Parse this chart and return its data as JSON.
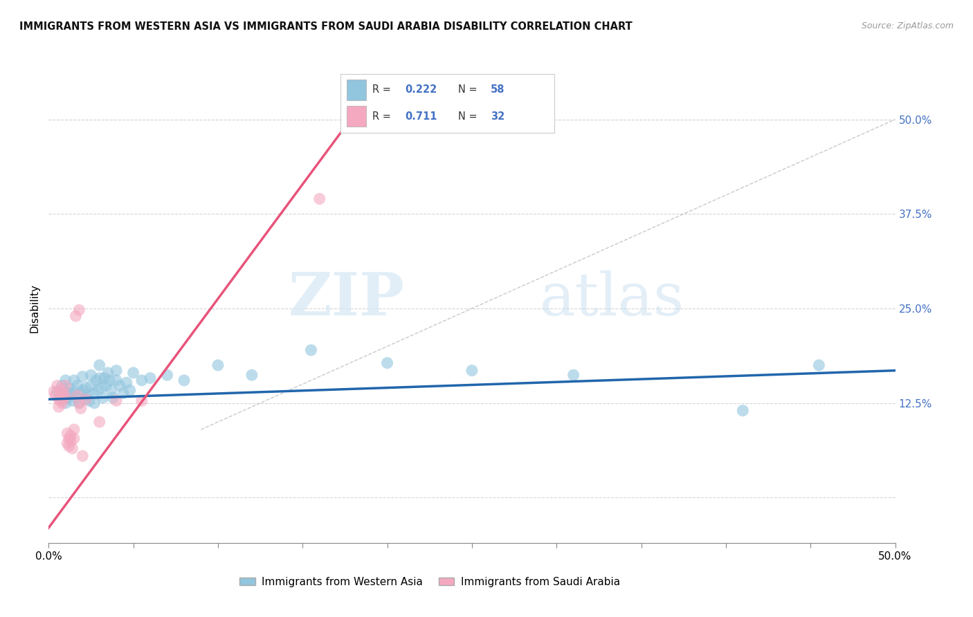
{
  "title": "IMMIGRANTS FROM WESTERN ASIA VS IMMIGRANTS FROM SAUDI ARABIA DISABILITY CORRELATION CHART",
  "source": "Source: ZipAtlas.com",
  "ylabel": "Disability",
  "xlim": [
    0.0,
    0.5
  ],
  "ylim": [
    -0.06,
    0.56
  ],
  "ytick_values": [
    0.0,
    0.125,
    0.25,
    0.375,
    0.5
  ],
  "xtick_values": [
    0.0,
    0.05,
    0.1,
    0.15,
    0.2,
    0.25,
    0.3,
    0.35,
    0.4,
    0.45,
    0.5
  ],
  "legend_blue_label": "Immigrants from Western Asia",
  "legend_pink_label": "Immigrants from Saudi Arabia",
  "R_blue": "0.222",
  "N_blue": "58",
  "R_pink": "0.711",
  "N_pink": "32",
  "blue_color": "#92c5de",
  "pink_color": "#f4a9c0",
  "trend_blue_color": "#2166ac",
  "trend_pink_color": "#e8547a",
  "watermark_zip": "ZIP",
  "watermark_atlas": "atlas",
  "blue_scatter": [
    [
      0.005,
      0.14
    ],
    [
      0.007,
      0.135
    ],
    [
      0.008,
      0.148
    ],
    [
      0.009,
      0.13
    ],
    [
      0.01,
      0.155
    ],
    [
      0.01,
      0.14
    ],
    [
      0.01,
      0.125
    ],
    [
      0.011,
      0.132
    ],
    [
      0.012,
      0.145
    ],
    [
      0.013,
      0.138
    ],
    [
      0.014,
      0.128
    ],
    [
      0.015,
      0.155
    ],
    [
      0.015,
      0.14
    ],
    [
      0.016,
      0.133
    ],
    [
      0.017,
      0.148
    ],
    [
      0.018,
      0.125
    ],
    [
      0.019,
      0.138
    ],
    [
      0.02,
      0.16
    ],
    [
      0.02,
      0.142
    ],
    [
      0.021,
      0.13
    ],
    [
      0.022,
      0.145
    ],
    [
      0.023,
      0.135
    ],
    [
      0.024,
      0.128
    ],
    [
      0.025,
      0.162
    ],
    [
      0.025,
      0.148
    ],
    [
      0.026,
      0.138
    ],
    [
      0.027,
      0.125
    ],
    [
      0.028,
      0.155
    ],
    [
      0.029,
      0.142
    ],
    [
      0.03,
      0.175
    ],
    [
      0.03,
      0.158
    ],
    [
      0.031,
      0.145
    ],
    [
      0.032,
      0.132
    ],
    [
      0.033,
      0.158
    ],
    [
      0.034,
      0.148
    ],
    [
      0.035,
      0.165
    ],
    [
      0.036,
      0.155
    ],
    [
      0.037,
      0.142
    ],
    [
      0.038,
      0.132
    ],
    [
      0.04,
      0.168
    ],
    [
      0.04,
      0.155
    ],
    [
      0.042,
      0.148
    ],
    [
      0.044,
      0.138
    ],
    [
      0.046,
      0.152
    ],
    [
      0.048,
      0.142
    ],
    [
      0.05,
      0.165
    ],
    [
      0.055,
      0.155
    ],
    [
      0.06,
      0.158
    ],
    [
      0.07,
      0.162
    ],
    [
      0.08,
      0.155
    ],
    [
      0.1,
      0.175
    ],
    [
      0.12,
      0.162
    ],
    [
      0.155,
      0.195
    ],
    [
      0.2,
      0.178
    ],
    [
      0.25,
      0.168
    ],
    [
      0.31,
      0.162
    ],
    [
      0.41,
      0.115
    ],
    [
      0.455,
      0.175
    ]
  ],
  "pink_scatter": [
    [
      0.003,
      0.14
    ],
    [
      0.004,
      0.135
    ],
    [
      0.005,
      0.148
    ],
    [
      0.006,
      0.13
    ],
    [
      0.006,
      0.12
    ],
    [
      0.007,
      0.143
    ],
    [
      0.007,
      0.128
    ],
    [
      0.008,
      0.138
    ],
    [
      0.008,
      0.125
    ],
    [
      0.009,
      0.132
    ],
    [
      0.01,
      0.148
    ],
    [
      0.01,
      0.135
    ],
    [
      0.011,
      0.085
    ],
    [
      0.011,
      0.072
    ],
    [
      0.012,
      0.078
    ],
    [
      0.012,
      0.068
    ],
    [
      0.013,
      0.082
    ],
    [
      0.013,
      0.075
    ],
    [
      0.014,
      0.065
    ],
    [
      0.015,
      0.09
    ],
    [
      0.015,
      0.078
    ],
    [
      0.016,
      0.24
    ],
    [
      0.017,
      0.135
    ],
    [
      0.018,
      0.125
    ],
    [
      0.019,
      0.118
    ],
    [
      0.02,
      0.055
    ],
    [
      0.022,
      0.13
    ],
    [
      0.03,
      0.1
    ],
    [
      0.04,
      0.128
    ],
    [
      0.055,
      0.128
    ],
    [
      0.018,
      0.248
    ],
    [
      0.16,
      0.395
    ]
  ],
  "blue_trend_x": [
    0.0,
    0.5
  ],
  "blue_trend_y": [
    0.13,
    0.168
  ],
  "pink_trend_x": [
    -0.005,
    0.175
  ],
  "pink_trend_y": [
    -0.055,
    0.49
  ],
  "dashed_line_x": [
    0.09,
    0.5
  ],
  "dashed_line_y": [
    0.09,
    0.5
  ],
  "grid_color": "#d0d0d0",
  "bg_color": "#ffffff",
  "right_tick_color": "#4472c4"
}
